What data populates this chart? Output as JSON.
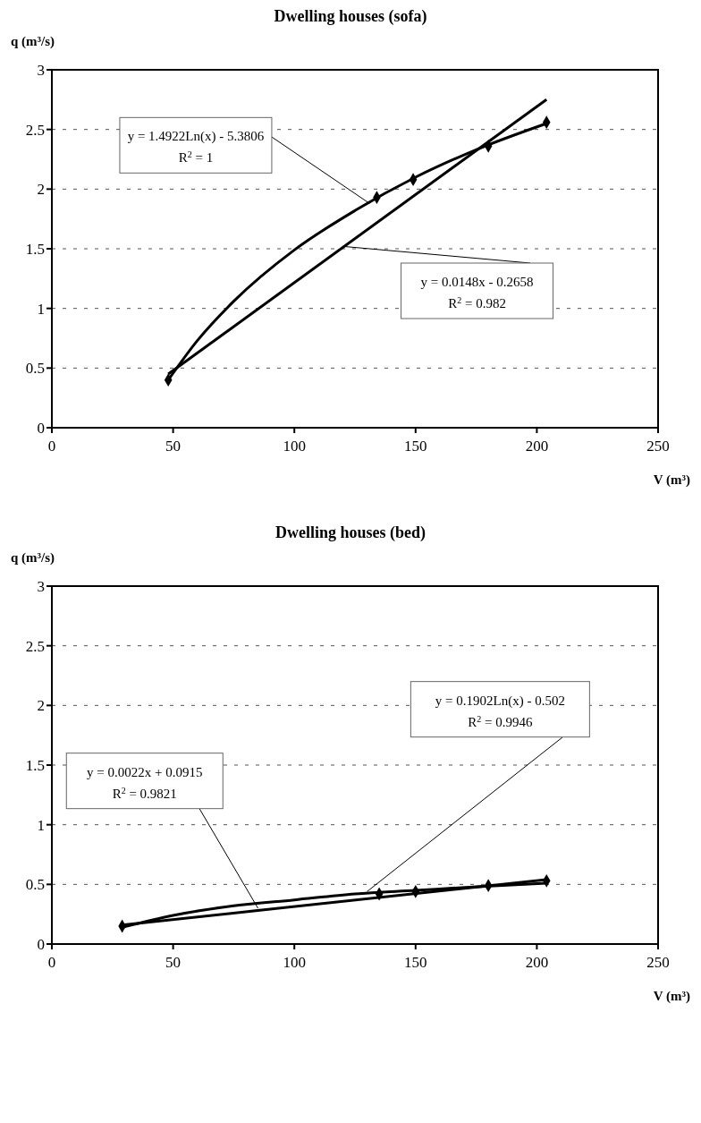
{
  "chart_data": [
    {
      "type": "scatter",
      "title": "Dwelling houses (sofa)",
      "xlabel": "V (m³)",
      "ylabel": "q (m³/s)",
      "xlim": [
        0,
        250
      ],
      "xticks": [
        0,
        50,
        100,
        150,
        200,
        250
      ],
      "ylim": [
        0,
        3
      ],
      "yticks": [
        0,
        0.5,
        1,
        1.5,
        2,
        2.5,
        3
      ],
      "grid": "y",
      "series": [
        {
          "type": "scatter",
          "color": "#000000",
          "marker": "diamond",
          "x": [
            48,
            134,
            149,
            180,
            204
          ],
          "values": [
            0.4,
            1.93,
            2.08,
            2.36,
            2.56
          ]
        },
        {
          "type": "line",
          "marker": "none",
          "color": "#000000",
          "x": [
            48,
            204
          ],
          "values": [
            0.45,
            2.75
          ]
        },
        {
          "type": "line",
          "marker": "none",
          "color": "#000000",
          "x": [
            48,
            60,
            75,
            100,
            125,
            150,
            175,
            204
          ],
          "values": [
            0.4,
            0.73,
            1.06,
            1.49,
            1.82,
            2.1,
            2.33,
            2.55
          ]
        }
      ],
      "annotations": [
        {
          "text": "y = 1.4922Ln(x) - 5.3806\nR$^{2}$ = 1",
          "x": 131,
          "y": 1.88
        },
        {
          "text": "y = 0.0148x - 0.2658\nR$^{2}$ = 0.982",
          "x": 120,
          "y": 1.52
        }
      ]
    },
    {
      "type": "scatter",
      "title": "Dwelling houses (bed)",
      "xlabel": "V (m³)",
      "ylabel": "q (m³/s)",
      "xlim": [
        0,
        250
      ],
      "xticks": [
        0,
        50,
        100,
        150,
        200,
        250
      ],
      "ylim": [
        0,
        3
      ],
      "yticks": [
        0,
        0.5,
        1,
        1.5,
        2,
        2.5,
        3
      ],
      "grid": "y",
      "series": [
        {
          "type": "scatter",
          "color": "#000000",
          "marker": "diamond",
          "x": [
            29,
            135,
            150,
            180,
            204
          ],
          "values": [
            0.15,
            0.42,
            0.44,
            0.49,
            0.53
          ]
        },
        {
          "type": "line",
          "marker": "none",
          "color": "#000000",
          "x": [
            29,
            204
          ],
          "values": [
            0.16,
            0.54
          ]
        },
        {
          "type": "line",
          "marker": "none",
          "color": "#000000",
          "x": [
            29,
            50,
            75,
            100,
            125,
            150,
            175,
            204
          ],
          "values": [
            0.14,
            0.24,
            0.32,
            0.37,
            0.42,
            0.45,
            0.48,
            0.51
          ]
        }
      ],
      "annotations": [
        {
          "text": "y = 0.0022x + 0.0915\nR$^{2}$ = 0.9821",
          "x": 85,
          "y": 0.3
        },
        {
          "text": "y = 0.1902Ln(x) - 0.502\nR$^{2}$ = 0.9946",
          "x": 130,
          "y": 0.44
        }
      ]
    }
  ]
}
